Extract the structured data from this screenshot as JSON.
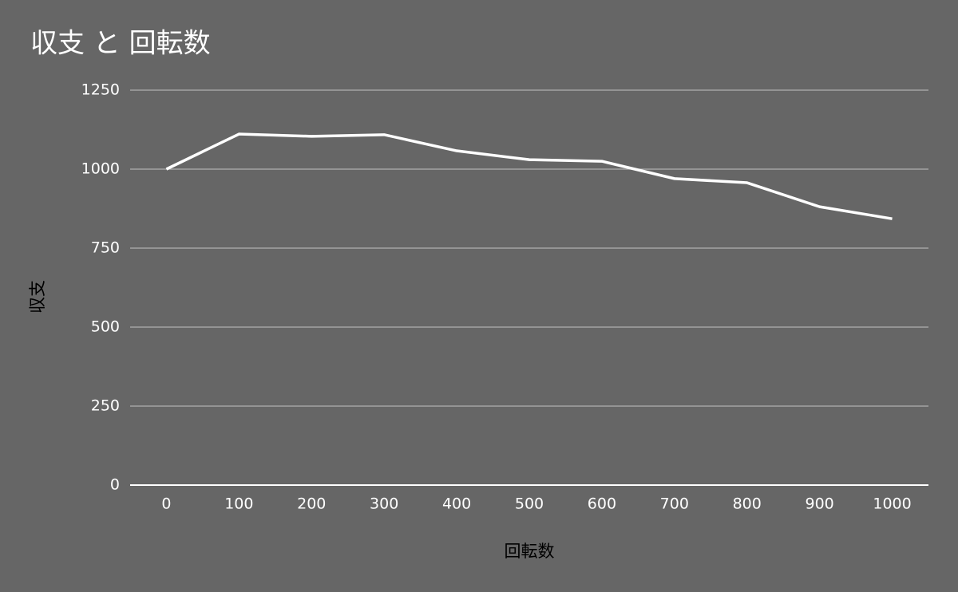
{
  "chart_data": {
    "type": "line",
    "title": "収支 と 回転数",
    "x_label": "回転数",
    "y_label": "収支",
    "categories": [
      "0",
      "100",
      "200",
      "300",
      "400",
      "500",
      "600",
      "700",
      "800",
      "900",
      "1000"
    ],
    "series": [
      {
        "name": "収支",
        "color": "#ffffff",
        "values": [
          1000,
          1111,
          1104,
          1109,
          1058,
          1030,
          1025,
          970,
          957,
          881,
          843
        ]
      }
    ],
    "ylim": [
      0,
      1250
    ],
    "yticks": [
      0,
      250,
      500,
      750,
      1000,
      1250
    ],
    "grid": true
  }
}
